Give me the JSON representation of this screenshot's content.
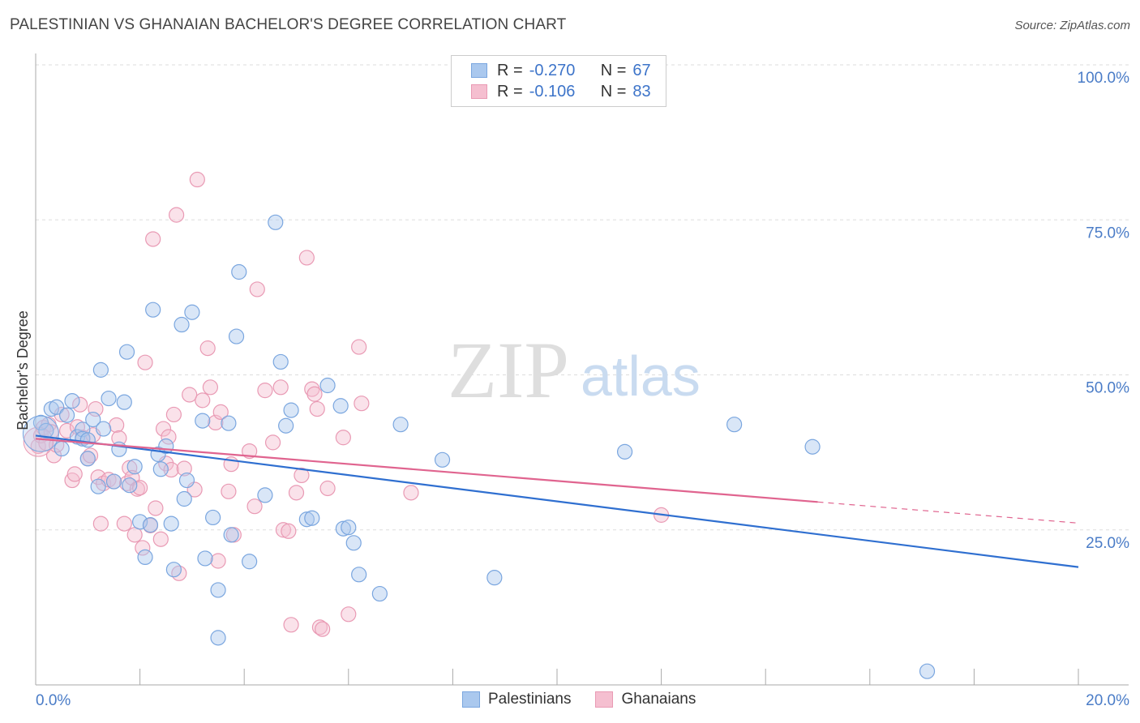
{
  "header": {
    "title": "PALESTINIAN VS GHANAIAN BACHELOR'S DEGREE CORRELATION CHART",
    "source": "Source: ZipAtlas.com"
  },
  "watermark": {
    "zip": "ZIP",
    "atlas": "atlas"
  },
  "legend": {
    "rows": [
      {
        "r_label": "R =",
        "r_value": "-0.270",
        "n_label": "N =",
        "n_value": "67"
      },
      {
        "r_label": "R =",
        "r_value": "-0.106",
        "n_label": "N =",
        "n_value": "83"
      }
    ]
  },
  "bottom_legend": {
    "items": [
      "Palestinians",
      "Ghanaians"
    ]
  },
  "colors": {
    "blue_fill": "#aac8ee",
    "blue_stroke": "#7aa6df",
    "blue_line": "#2f6fd0",
    "pink_fill": "#f5bfd0",
    "pink_stroke": "#e99ab4",
    "pink_line": "#e0648f",
    "grid": "#dddddd",
    "tick_text": "#4a7cc7"
  },
  "chart_data": {
    "type": "scatter",
    "title": "PALESTINIAN VS GHANAIAN BACHELOR'S DEGREE CORRELATION CHART",
    "xlabel": "",
    "ylabel": "Bachelor's Degree",
    "xlim": [
      0,
      20
    ],
    "ylim": [
      0,
      100
    ],
    "x_tick_labels": [
      "0.0%",
      "20.0%"
    ],
    "y_tick_labels": [
      "100.0%",
      "75.0%",
      "50.0%",
      "25.0%"
    ],
    "y_ticks": [
      100,
      75,
      50,
      25
    ],
    "series": [
      {
        "name": "Palestinians",
        "r": -0.27,
        "n": 67,
        "trend": {
          "x": [
            0,
            20
          ],
          "y": [
            40.2,
            19.0
          ]
        },
        "points": [
          [
            0.1,
            42.3
          ],
          [
            0.2,
            41.0
          ],
          [
            0.3,
            44.5
          ],
          [
            0.4,
            44.8
          ],
          [
            0.5,
            38.1
          ],
          [
            0.6,
            43.5
          ],
          [
            0.7,
            45.8
          ],
          [
            0.8,
            40.0
          ],
          [
            0.9,
            41.2
          ],
          [
            0.9,
            39.7
          ],
          [
            1.0,
            39.5
          ],
          [
            1.0,
            36.5
          ],
          [
            1.1,
            42.8
          ],
          [
            1.2,
            32.0
          ],
          [
            1.25,
            50.8
          ],
          [
            1.3,
            41.3
          ],
          [
            1.4,
            46.2
          ],
          [
            1.5,
            32.8
          ],
          [
            1.6,
            38.0
          ],
          [
            1.7,
            45.6
          ],
          [
            1.75,
            53.7
          ],
          [
            1.8,
            32.2
          ],
          [
            1.9,
            35.2
          ],
          [
            2.0,
            26.3
          ],
          [
            2.1,
            20.6
          ],
          [
            2.2,
            25.8
          ],
          [
            2.25,
            60.5
          ],
          [
            2.35,
            37.2
          ],
          [
            2.4,
            34.8
          ],
          [
            2.5,
            38.5
          ],
          [
            2.6,
            26.0
          ],
          [
            2.65,
            18.6
          ],
          [
            2.8,
            58.1
          ],
          [
            2.85,
            30.0
          ],
          [
            2.9,
            33.0
          ],
          [
            3.0,
            60.1
          ],
          [
            3.2,
            42.6
          ],
          [
            3.25,
            20.4
          ],
          [
            3.4,
            27.0
          ],
          [
            3.5,
            15.3
          ],
          [
            3.5,
            7.6
          ],
          [
            3.7,
            42.2
          ],
          [
            3.75,
            24.2
          ],
          [
            3.85,
            56.2
          ],
          [
            3.9,
            66.6
          ],
          [
            4.1,
            19.9
          ],
          [
            4.4,
            30.6
          ],
          [
            4.6,
            74.6
          ],
          [
            4.7,
            52.1
          ],
          [
            4.8,
            41.8
          ],
          [
            4.9,
            44.3
          ],
          [
            5.2,
            26.7
          ],
          [
            5.3,
            26.9
          ],
          [
            5.6,
            48.3
          ],
          [
            5.85,
            45.0
          ],
          [
            5.9,
            25.2
          ],
          [
            6.0,
            25.4
          ],
          [
            6.1,
            22.9
          ],
          [
            6.2,
            17.8
          ],
          [
            6.6,
            14.7
          ],
          [
            7.0,
            42.0
          ],
          [
            7.8,
            36.3
          ],
          [
            8.8,
            17.3
          ],
          [
            11.3,
            37.6
          ],
          [
            13.4,
            42.0
          ],
          [
            14.9,
            38.4
          ],
          [
            17.1,
            2.2
          ]
        ]
      },
      {
        "name": "Ghanaians",
        "r": -0.106,
        "n": 83,
        "trend": {
          "x": [
            0,
            15
          ],
          "y": [
            39.7,
            29.5
          ]
        },
        "trend_dashed": {
          "x": [
            15,
            20
          ],
          "y": [
            29.5,
            26.1
          ]
        },
        "points": [
          [
            0.05,
            38.5
          ],
          [
            0.1,
            40.2
          ],
          [
            0.15,
            41.5
          ],
          [
            0.2,
            39.0
          ],
          [
            0.25,
            42.0
          ],
          [
            0.3,
            40.8
          ],
          [
            0.35,
            37.0
          ],
          [
            0.4,
            38.7
          ],
          [
            0.5,
            43.6
          ],
          [
            0.6,
            41.0
          ],
          [
            0.7,
            33.0
          ],
          [
            0.75,
            34.0
          ],
          [
            0.8,
            41.6
          ],
          [
            0.85,
            45.2
          ],
          [
            0.9,
            39.9
          ],
          [
            1.0,
            36.5
          ],
          [
            1.05,
            37.0
          ],
          [
            1.1,
            40.3
          ],
          [
            1.15,
            44.5
          ],
          [
            1.2,
            33.5
          ],
          [
            1.25,
            26.0
          ],
          [
            1.3,
            32.5
          ],
          [
            1.4,
            33.1
          ],
          [
            1.5,
            32.8
          ],
          [
            1.55,
            41.9
          ],
          [
            1.6,
            39.8
          ],
          [
            1.7,
            26.0
          ],
          [
            1.75,
            32.5
          ],
          [
            1.8,
            35.0
          ],
          [
            1.85,
            33.4
          ],
          [
            1.9,
            24.2
          ],
          [
            1.95,
            31.6
          ],
          [
            2.0,
            31.8
          ],
          [
            2.05,
            22.1
          ],
          [
            2.1,
            52.0
          ],
          [
            2.2,
            25.7
          ],
          [
            2.25,
            71.9
          ],
          [
            2.3,
            28.5
          ],
          [
            2.4,
            23.5
          ],
          [
            2.45,
            41.3
          ],
          [
            2.5,
            35.7
          ],
          [
            2.55,
            40.0
          ],
          [
            2.6,
            34.7
          ],
          [
            2.65,
            43.6
          ],
          [
            2.7,
            75.8
          ],
          [
            2.75,
            18.0
          ],
          [
            2.85,
            34.9
          ],
          [
            2.95,
            46.8
          ],
          [
            3.05,
            31.5
          ],
          [
            3.1,
            81.5
          ],
          [
            3.2,
            45.9
          ],
          [
            3.3,
            54.3
          ],
          [
            3.35,
            48.0
          ],
          [
            3.45,
            42.3
          ],
          [
            3.5,
            20.0
          ],
          [
            3.55,
            44.0
          ],
          [
            3.7,
            31.2
          ],
          [
            3.75,
            35.6
          ],
          [
            3.8,
            24.2
          ],
          [
            4.1,
            37.7
          ],
          [
            4.2,
            28.8
          ],
          [
            4.25,
            63.8
          ],
          [
            4.4,
            47.5
          ],
          [
            4.55,
            39.1
          ],
          [
            4.7,
            48.0
          ],
          [
            4.75,
            25.0
          ],
          [
            4.85,
            24.8
          ],
          [
            4.9,
            9.7
          ],
          [
            5.0,
            31.0
          ],
          [
            5.1,
            33.8
          ],
          [
            5.2,
            68.9
          ],
          [
            5.3,
            47.7
          ],
          [
            5.4,
            44.5
          ],
          [
            5.35,
            46.9
          ],
          [
            5.45,
            9.3
          ],
          [
            5.5,
            9.0
          ],
          [
            5.6,
            31.7
          ],
          [
            5.9,
            39.9
          ],
          [
            6.0,
            11.4
          ],
          [
            6.2,
            54.5
          ],
          [
            6.25,
            45.4
          ],
          [
            7.2,
            31.0
          ],
          [
            12.0,
            27.4
          ]
        ]
      }
    ]
  }
}
